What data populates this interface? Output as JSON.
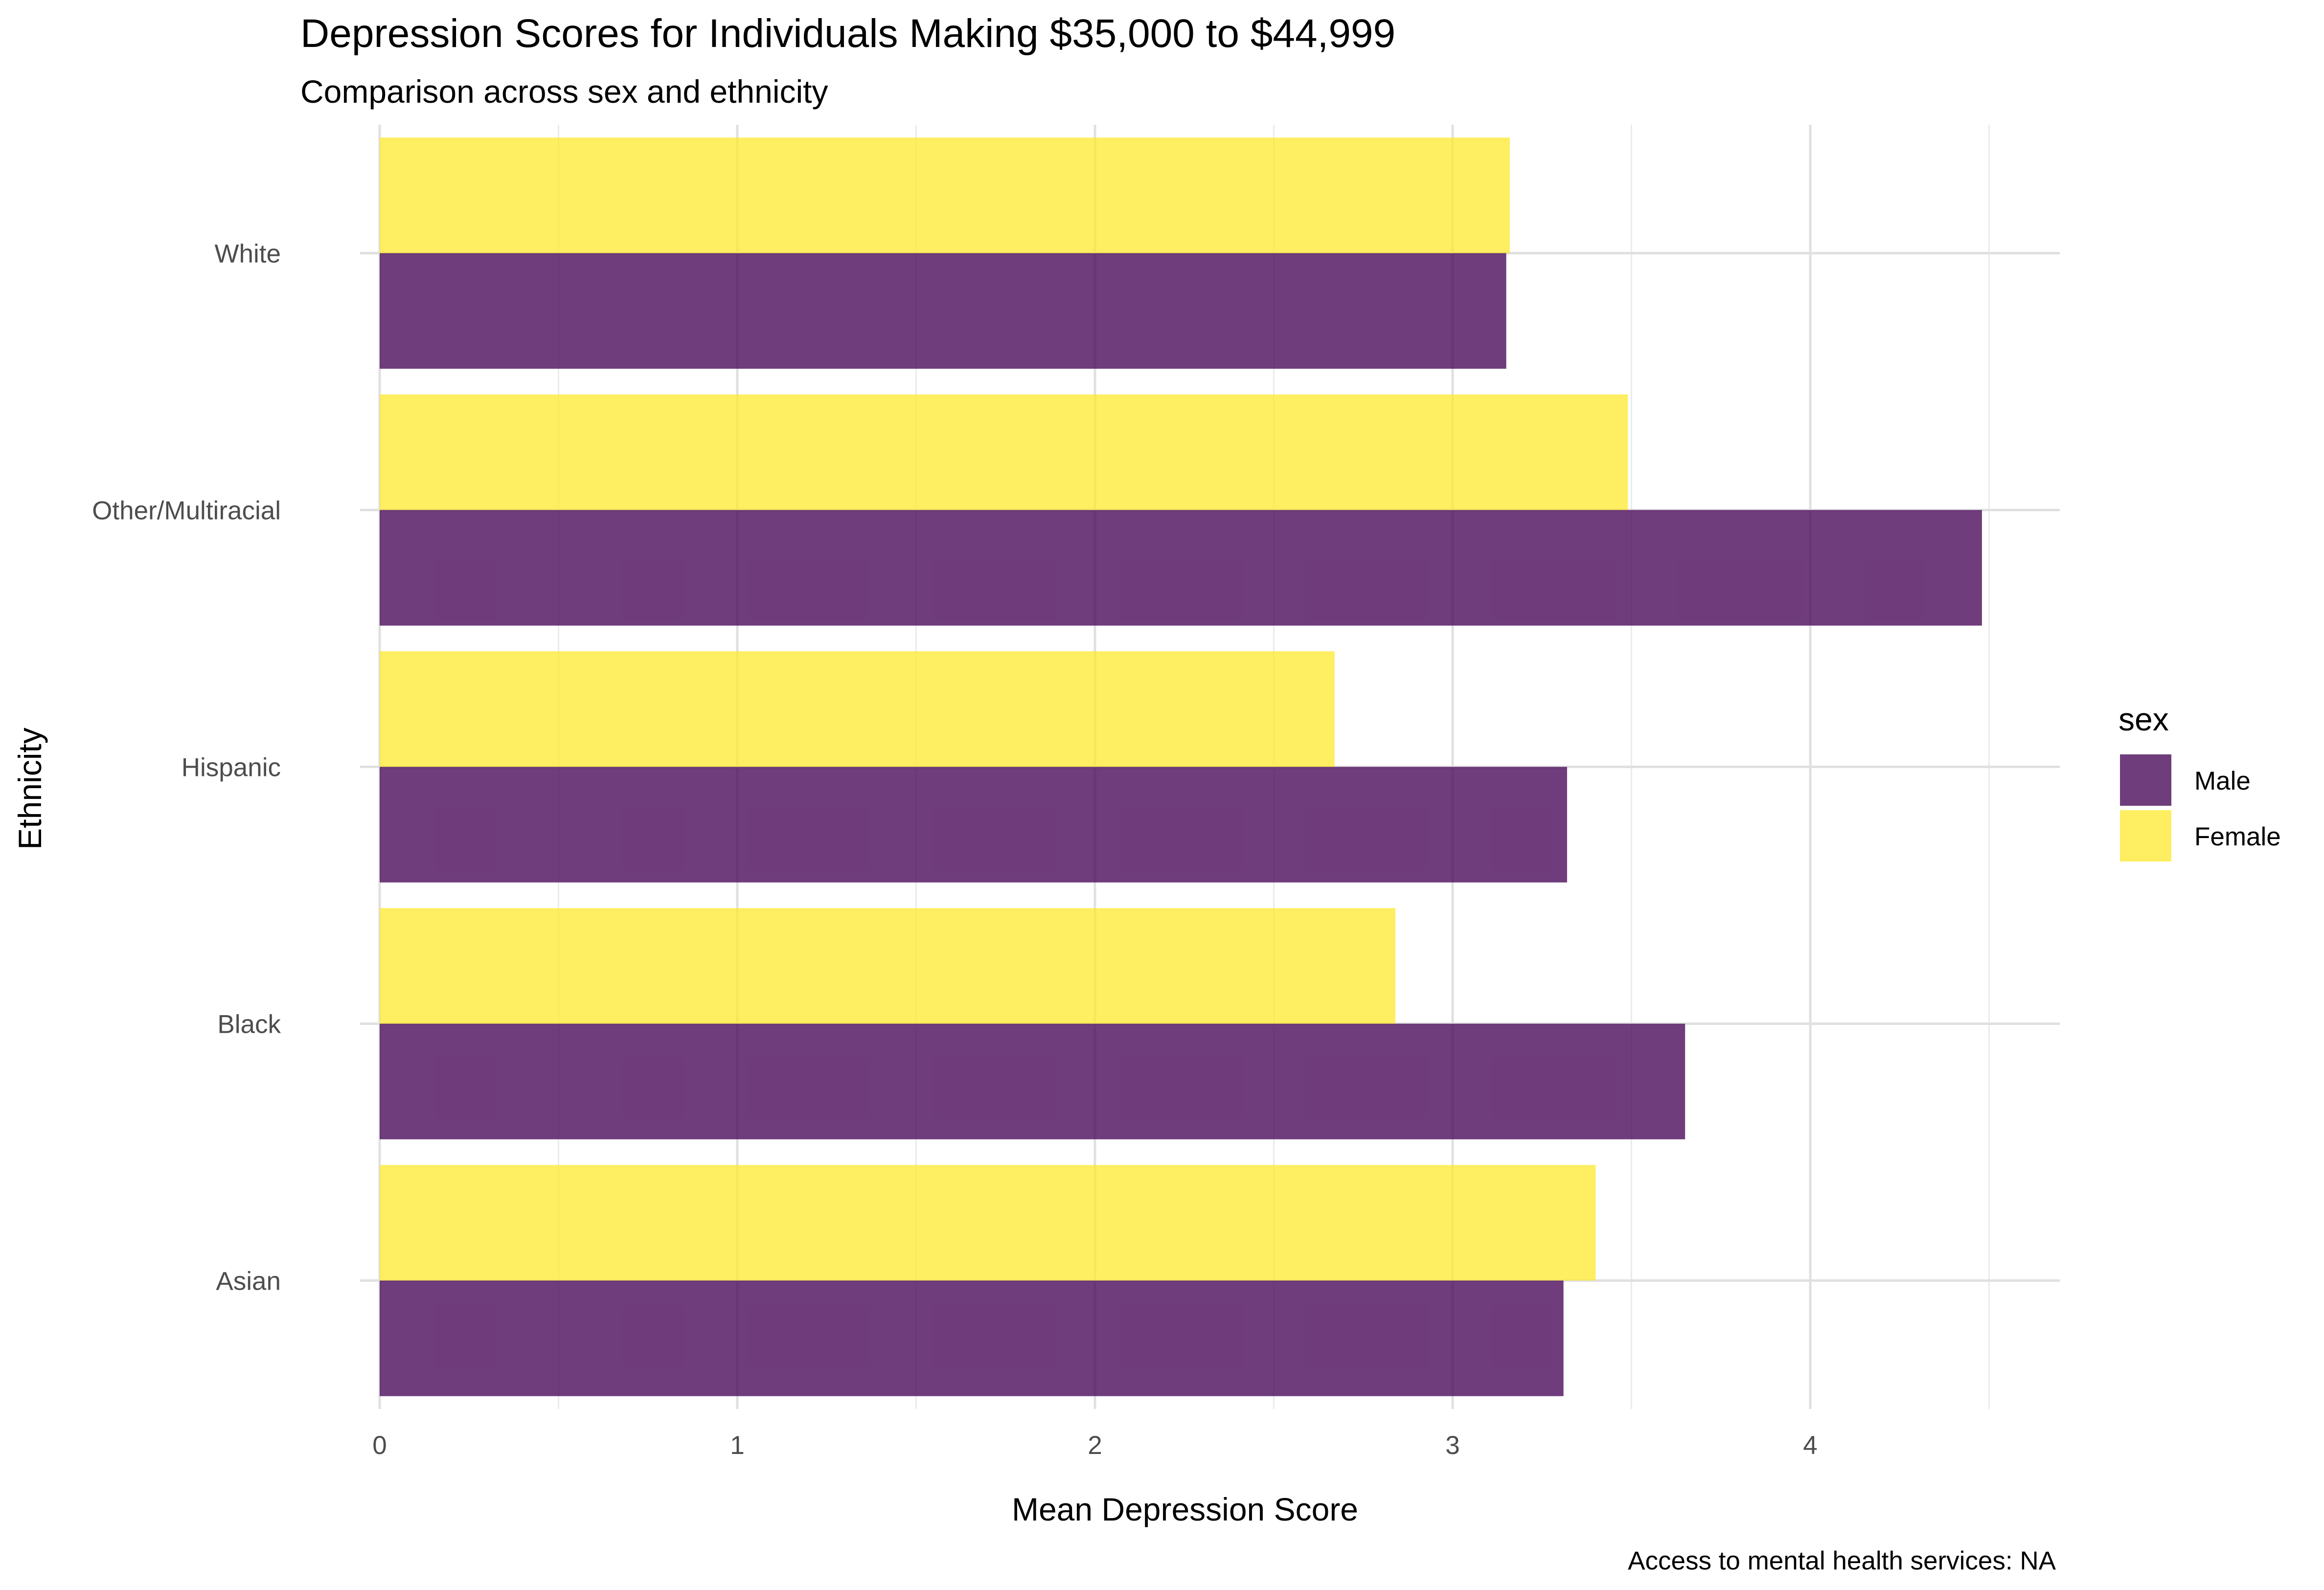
{
  "chart_data": {
    "type": "bar",
    "orientation": "horizontal",
    "title": "Depression Scores for Individuals Making $35,000 to $44,999",
    "subtitle": "Comparison across sex and ethnicity",
    "xlabel": "Mean Depression Score",
    "ylabel": "Ethnicity",
    "caption": "Access to mental health services: NA",
    "categories": [
      "Asian",
      "Black",
      "Hispanic",
      "Other/Multiracial",
      "White"
    ],
    "xlim": [
      0,
      4.7
    ],
    "x_ticks": [
      "0",
      "1",
      "2",
      "3",
      "4"
    ],
    "legend_title": "sex",
    "legend_position": "right",
    "grid": true,
    "series": [
      {
        "name": "Male",
        "color": "#440154",
        "values": [
          3.31,
          3.65,
          3.32,
          4.48,
          3.15
        ]
      },
      {
        "name": "Female",
        "color": "#FDE725",
        "values": [
          3.4,
          2.84,
          2.67,
          3.49,
          3.16
        ]
      }
    ]
  }
}
